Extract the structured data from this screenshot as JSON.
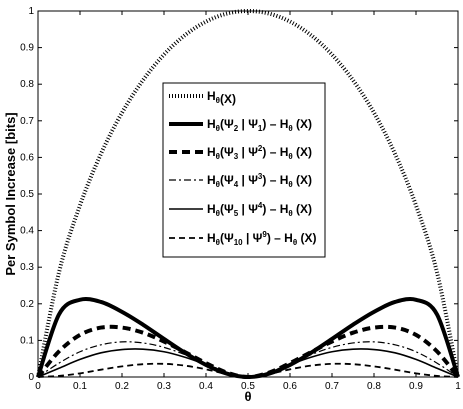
{
  "chart_data": {
    "type": "line",
    "title": "",
    "xlabel": "θ",
    "ylabel": "Per Symbol Increase [bits]",
    "xlim": [
      0,
      1
    ],
    "ylim": [
      0,
      1
    ],
    "xticks": [
      "0",
      "0.1",
      "0.2",
      "0.3",
      "0.4",
      "0.5",
      "0.6",
      "0.7",
      "0.8",
      "0.9",
      "1"
    ],
    "yticks": [
      "0",
      "0.1",
      "0.2",
      "0.3",
      "0.4",
      "0.5",
      "0.6",
      "0.7",
      "0.8",
      "0.9",
      "1"
    ],
    "grid": false,
    "legend_position": "center",
    "x": [
      0,
      0.05,
      0.1,
      0.15,
      0.2,
      0.25,
      0.3,
      0.35,
      0.4,
      0.45,
      0.5,
      0.55,
      0.6,
      0.65,
      0.7,
      0.75,
      0.8,
      0.85,
      0.9,
      0.95,
      1
    ],
    "series": [
      {
        "legend": {
          "main": "H",
          "sub1": "θ",
          "rest": "(X)"
        },
        "style": "dotted",
        "values": [
          0,
          0.286,
          0.469,
          0.61,
          0.722,
          0.811,
          0.881,
          0.934,
          0.971,
          0.993,
          1,
          0.993,
          0.971,
          0.934,
          0.881,
          0.811,
          0.722,
          0.61,
          0.469,
          0.286,
          0
        ]
      },
      {
        "legend": {
          "main": "H",
          "sub1": "θ",
          "p1": "(Ψ",
          "sub2": "2",
          "p2": " | Ψ",
          "sub3": "1",
          "sup": "",
          "rest": ") – H",
          "sub4": "θ",
          "end": " (X)"
        },
        "style": "thick",
        "values": [
          0,
          0.171,
          0.211,
          0.205,
          0.178,
          0.143,
          0.104,
          0.066,
          0.033,
          0.009,
          0,
          0.009,
          0.033,
          0.066,
          0.104,
          0.143,
          0.178,
          0.205,
          0.211,
          0.171,
          0
        ]
      },
      {
        "legend": {
          "main": "H",
          "sub1": "θ",
          "p1": "(Ψ",
          "sub2": "3",
          "p2": " | Ψ",
          "sub3": "",
          "sup": "2",
          "rest": ") – H",
          "sub4": "θ",
          "end": " (X)"
        },
        "style": "dashed-thick",
        "values": [
          0,
          0.07,
          0.115,
          0.135,
          0.135,
          0.121,
          0.097,
          0.068,
          0.038,
          0.012,
          0,
          0.012,
          0.038,
          0.068,
          0.097,
          0.121,
          0.135,
          0.135,
          0.115,
          0.07,
          0
        ]
      },
      {
        "legend": {
          "main": "H",
          "sub1": "θ",
          "p1": "(Ψ",
          "sub2": "4",
          "p2": " | Ψ",
          "sub3": "",
          "sup": "3",
          "rest": ") – H",
          "sub4": "θ",
          "end": " (X)"
        },
        "style": "dashdot",
        "values": [
          0,
          0.038,
          0.069,
          0.088,
          0.096,
          0.093,
          0.081,
          0.061,
          0.037,
          0.013,
          0,
          0.013,
          0.037,
          0.061,
          0.081,
          0.093,
          0.096,
          0.088,
          0.069,
          0.038,
          0
        ]
      },
      {
        "legend": {
          "main": "H",
          "sub1": "θ",
          "p1": "(Ψ",
          "sub2": "5",
          "p2": " | Ψ",
          "sub3": "",
          "sup": "4",
          "rest": ") – H",
          "sub4": "θ",
          "end": " (X)"
        },
        "style": "solid",
        "values": [
          0,
          0.024,
          0.048,
          0.066,
          0.075,
          0.076,
          0.069,
          0.054,
          0.034,
          0.012,
          0,
          0.012,
          0.034,
          0.054,
          0.069,
          0.076,
          0.075,
          0.066,
          0.048,
          0.024,
          0
        ]
      },
      {
        "legend": {
          "main": "H",
          "sub1": "θ",
          "p1": "(Ψ",
          "sub2": "10",
          "p2": " | Ψ",
          "sub3": "",
          "sup": "9",
          "rest": ") – H",
          "sub4": "θ",
          "end": " (X)"
        },
        "style": "dashed",
        "values": [
          0,
          0.003,
          0.01,
          0.02,
          0.029,
          0.035,
          0.036,
          0.031,
          0.021,
          0.008,
          0,
          0.008,
          0.021,
          0.031,
          0.036,
          0.035,
          0.029,
          0.02,
          0.01,
          0.003,
          0
        ]
      }
    ]
  }
}
